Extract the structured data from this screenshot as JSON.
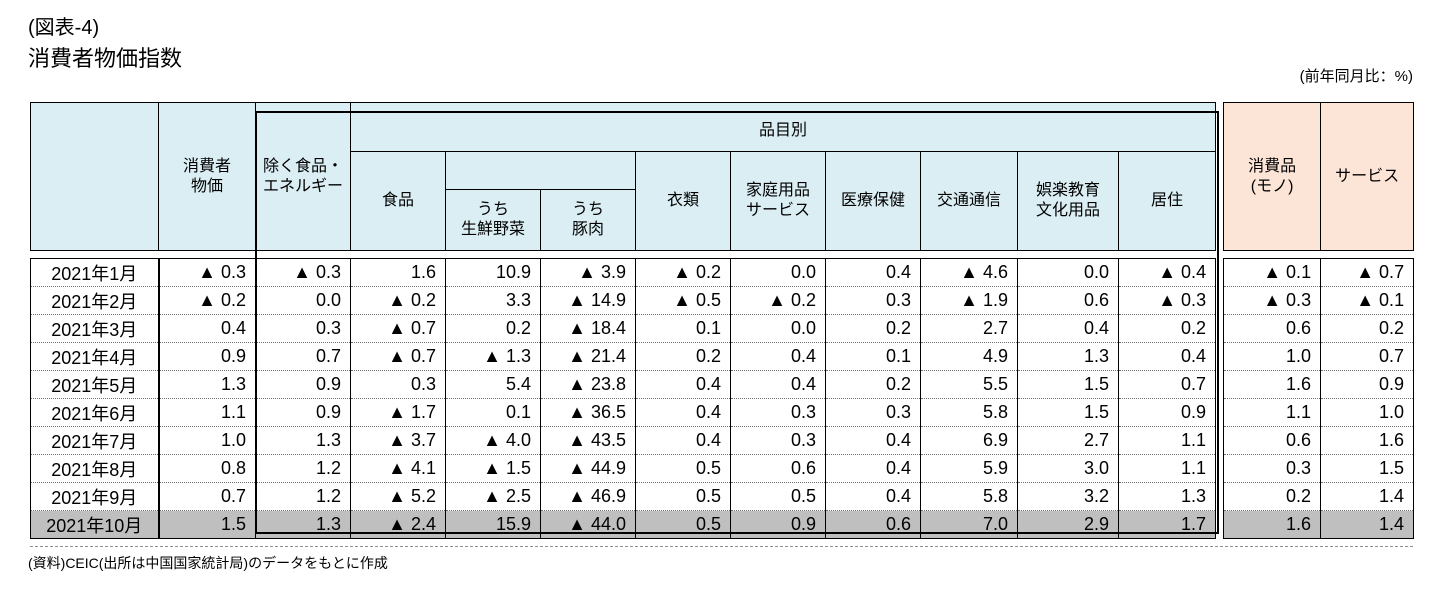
{
  "page": {
    "fig_label": "(図表-4)",
    "title": "消費者物価指数",
    "unit_note": "(前年同月比：%)",
    "source_note": "(資料)CEIC(出所は中国国家統計局)のデータをもとに作成"
  },
  "colors": {
    "header_blue": "#daeef3",
    "header_peach": "#fce4d6",
    "highlight_gray": "#bfbfbf"
  },
  "table": {
    "header": {
      "consumer_price": "消費者\n物価",
      "ex_food_energy": "除く食品・\nエネルギー",
      "by_item": "品目別",
      "food": "食品",
      "fresh_veg": "うち\n生鮮野菜",
      "pork": "うち\n豚肉",
      "clothing": "衣類",
      "household_goods_services": "家庭用品\nサービス",
      "medical_health": "医療保健",
      "transport_communication": "交通通信",
      "entertainment_education": "娯楽教育\n文化用品",
      "housing": "居住",
      "goods": "消費品\n(モノ)",
      "services": "サービス"
    },
    "column_keys": [
      "consumer_price",
      "ex_food_energy",
      "food",
      "fresh_veg",
      "pork",
      "clothing",
      "household_goods_services",
      "medical_health",
      "transport_communication",
      "entertainment_education",
      "housing",
      "goods",
      "services"
    ],
    "highlight_row_index": 9,
    "rows": [
      {
        "date": "2021年1月",
        "values": [
          "▲ 0.3",
          "▲ 0.3",
          "1.6",
          "10.9",
          "▲ 3.9",
          "▲ 0.2",
          "0.0",
          "0.4",
          "▲ 4.6",
          "0.0",
          "▲ 0.4",
          "▲ 0.1",
          "▲ 0.7"
        ]
      },
      {
        "date": "2021年2月",
        "values": [
          "▲ 0.2",
          "0.0",
          "▲ 0.2",
          "3.3",
          "▲ 14.9",
          "▲ 0.5",
          "▲ 0.2",
          "0.3",
          "▲ 1.9",
          "0.6",
          "▲ 0.3",
          "▲ 0.3",
          "▲ 0.1"
        ]
      },
      {
        "date": "2021年3月",
        "values": [
          "0.4",
          "0.3",
          "▲ 0.7",
          "0.2",
          "▲ 18.4",
          "0.1",
          "0.0",
          "0.2",
          "2.7",
          "0.4",
          "0.2",
          "0.6",
          "0.2"
        ]
      },
      {
        "date": "2021年4月",
        "values": [
          "0.9",
          "0.7",
          "▲ 0.7",
          "▲ 1.3",
          "▲ 21.4",
          "0.2",
          "0.4",
          "0.1",
          "4.9",
          "1.3",
          "0.4",
          "1.0",
          "0.7"
        ]
      },
      {
        "date": "2021年5月",
        "values": [
          "1.3",
          "0.9",
          "0.3",
          "5.4",
          "▲ 23.8",
          "0.4",
          "0.4",
          "0.2",
          "5.5",
          "1.5",
          "0.7",
          "1.6",
          "0.9"
        ]
      },
      {
        "date": "2021年6月",
        "values": [
          "1.1",
          "0.9",
          "▲ 1.7",
          "0.1",
          "▲ 36.5",
          "0.4",
          "0.3",
          "0.3",
          "5.8",
          "1.5",
          "0.9",
          "1.1",
          "1.0"
        ]
      },
      {
        "date": "2021年7月",
        "values": [
          "1.0",
          "1.3",
          "▲ 3.7",
          "▲ 4.0",
          "▲ 43.5",
          "0.4",
          "0.3",
          "0.4",
          "6.9",
          "2.7",
          "1.1",
          "0.6",
          "1.6"
        ]
      },
      {
        "date": "2021年8月",
        "values": [
          "0.8",
          "1.2",
          "▲ 4.1",
          "▲ 1.5",
          "▲ 44.9",
          "0.5",
          "0.6",
          "0.4",
          "5.9",
          "3.0",
          "1.1",
          "0.3",
          "1.5"
        ]
      },
      {
        "date": "2021年9月",
        "values": [
          "0.7",
          "1.2",
          "▲ 5.2",
          "▲ 2.5",
          "▲ 46.9",
          "0.5",
          "0.5",
          "0.4",
          "5.8",
          "3.2",
          "1.3",
          "0.2",
          "1.4"
        ]
      },
      {
        "date": "2021年10月",
        "values": [
          "1.5",
          "1.3",
          "▲ 2.4",
          "15.9",
          "▲ 44.0",
          "0.5",
          "0.9",
          "0.6",
          "7.0",
          "2.9",
          "1.7",
          "1.6",
          "1.4"
        ]
      }
    ]
  }
}
